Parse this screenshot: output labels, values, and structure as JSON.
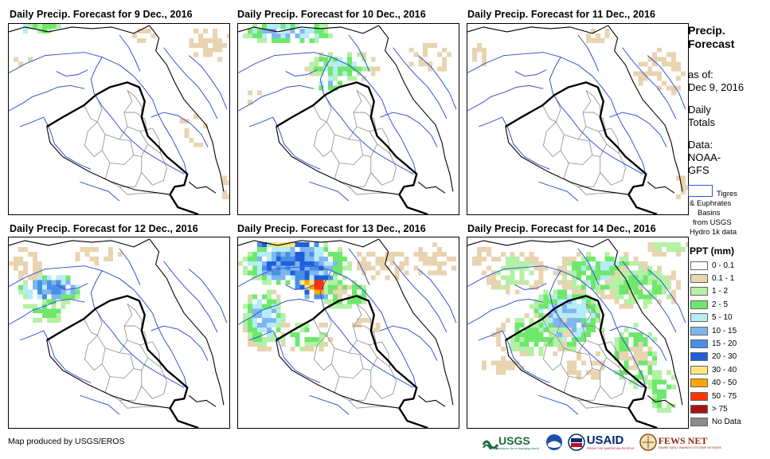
{
  "panels": [
    {
      "title": "Daily Precip. Forecast for 9 Dec., 2016"
    },
    {
      "title": "Daily Precip. Forecast for 10 Dec., 2016"
    },
    {
      "title": "Daily Precip. Forecast for 11 Dec., 2016"
    },
    {
      "title": "Daily Precip. Forecast for 12 Dec., 2016"
    },
    {
      "title": "Daily Precip. Forecast for 13 Dec., 2016"
    },
    {
      "title": "Daily Precip. Forecast for 14 Dec., 2016"
    }
  ],
  "sidebar": {
    "title_line1": "Precip.",
    "title_line2": "Forecast",
    "asof_line1": "as of:",
    "asof_line2": "Dec 9, 2016",
    "totals_line1": "Daily",
    "totals_line2": "Totals",
    "data_line1": "Data:",
    "data_line2": "NOAA-",
    "data_line3": "GFS",
    "basin_line1": "Tigres",
    "basin_line2": "& Euphrates",
    "basin_line3": "Basins",
    "basin_line4": "from USGS",
    "basin_line5": "Hydro 1k data"
  },
  "legend": {
    "title": "PPT (mm)",
    "items": [
      {
        "label": "0 - 0.1",
        "color": "#ffffff"
      },
      {
        "label": "0.1 - 1",
        "color": "#e8d4b0"
      },
      {
        "label": "1 - 2",
        "color": "#b4f0a6"
      },
      {
        "label": "2 - 5",
        "color": "#6de86d"
      },
      {
        "label": "5 - 10",
        "color": "#b6ecf5"
      },
      {
        "label": "10 - 15",
        "color": "#7fb6f0"
      },
      {
        "label": "15 - 20",
        "color": "#4a8fe6"
      },
      {
        "label": "20 - 30",
        "color": "#1f5fdc"
      },
      {
        "label": "30 - 40",
        "color": "#ffe680"
      },
      {
        "label": "40 - 50",
        "color": "#ffa500"
      },
      {
        "label": "50 - 75",
        "color": "#ff3300"
      },
      {
        "label": "> 75",
        "color": "#a51515"
      },
      {
        "label": "No Data",
        "color": "#8c8c8c"
      }
    ]
  },
  "credit": "Map produced by USGS/EROS",
  "logos": {
    "usgs": "USGS",
    "usgs_tag": "science for a changing world",
    "usaid": "USAID",
    "usaid_tag": "FROM THE AMERICAN PEOPLE",
    "fews": "FEWS NET",
    "fews_tag": "FAMINE EARLY WARNING SYSTEMS NETWORK"
  }
}
